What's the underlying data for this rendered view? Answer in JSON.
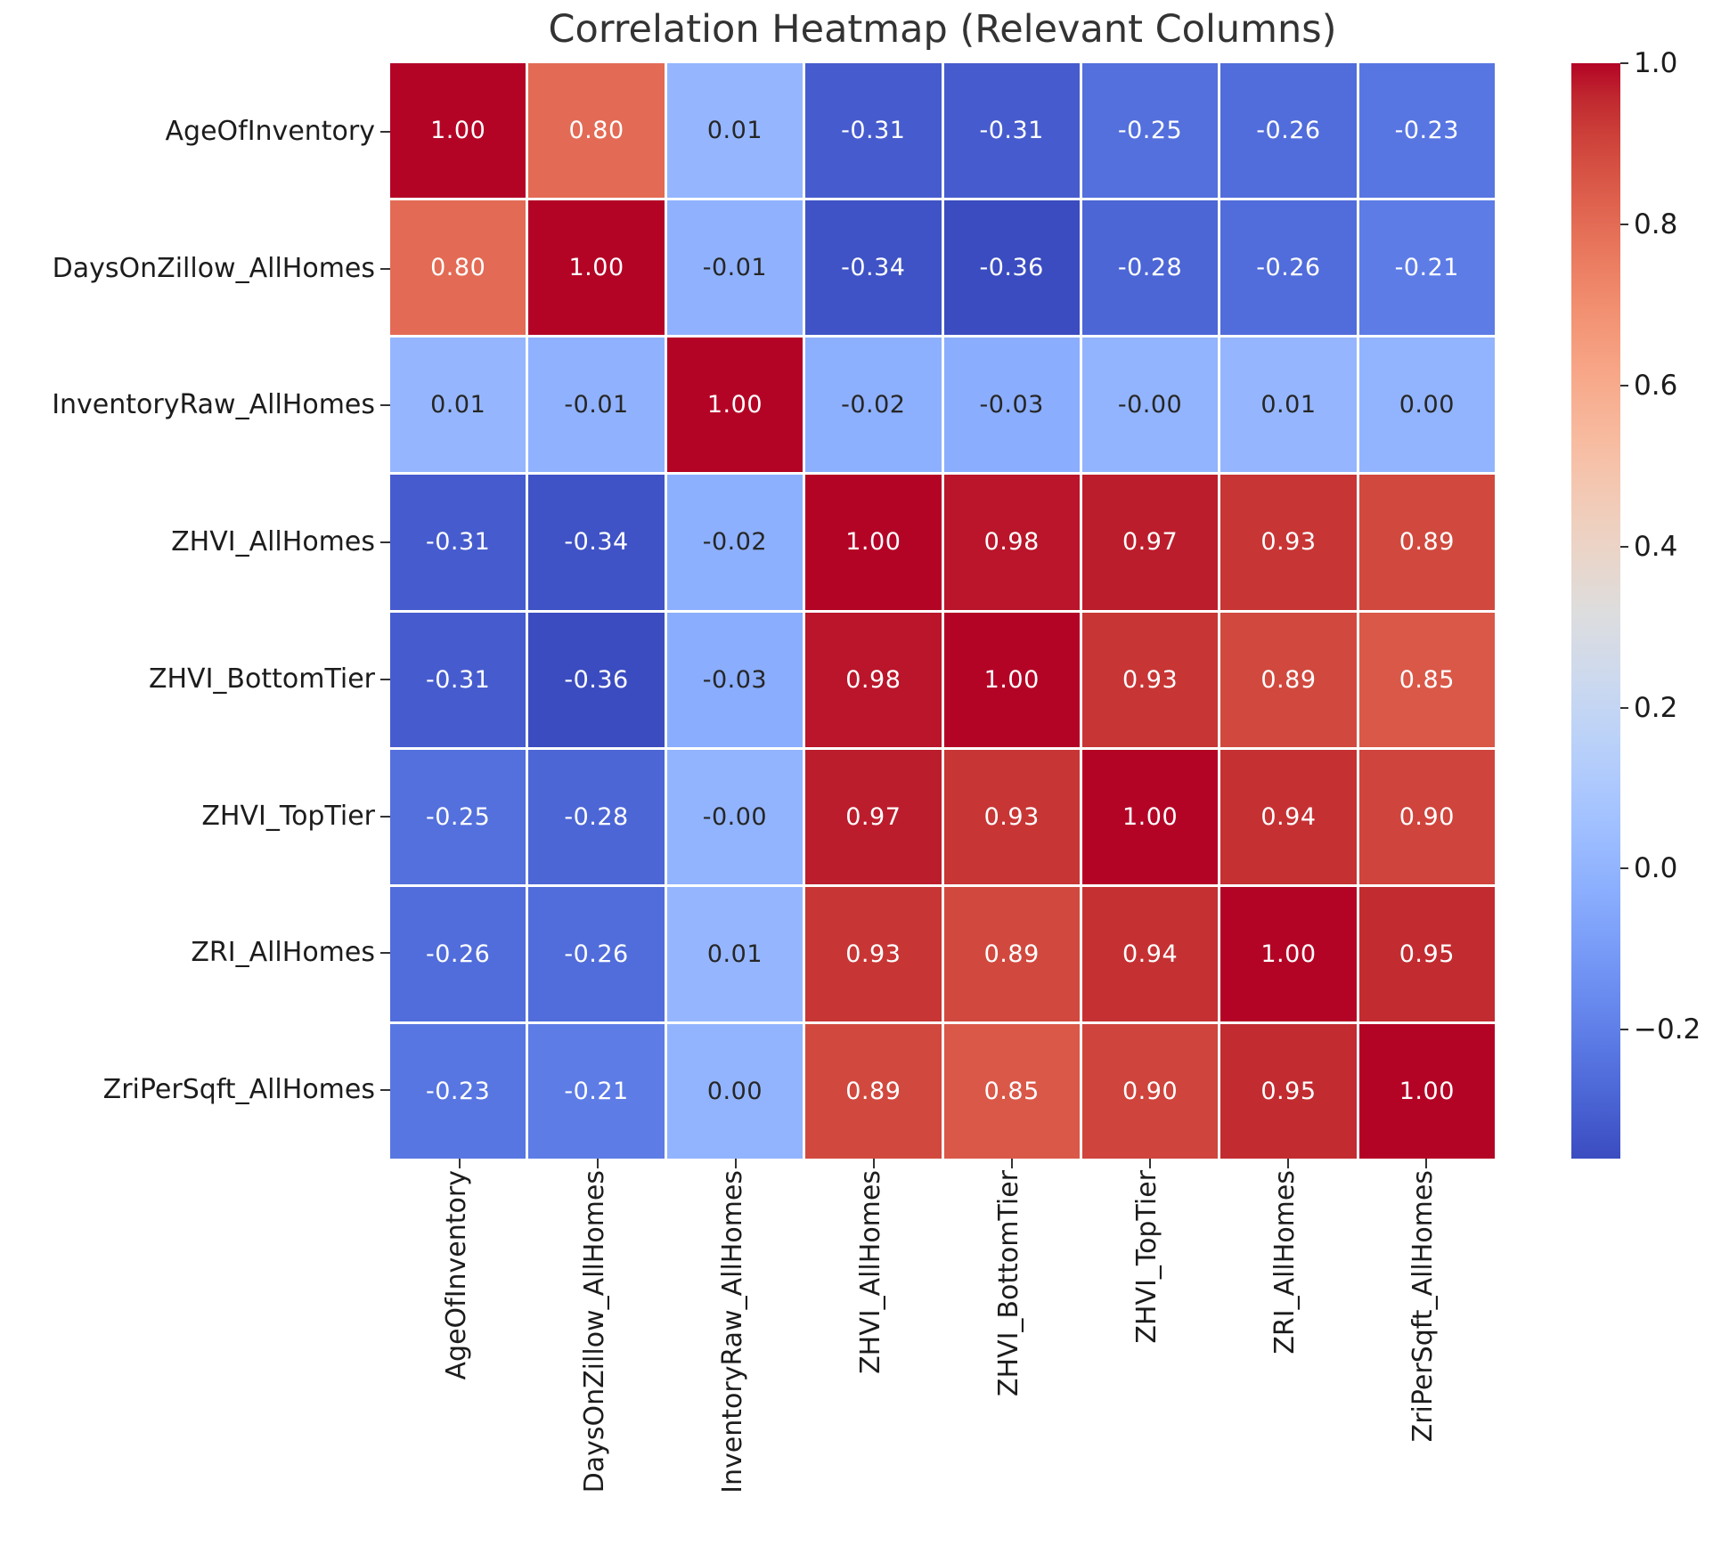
{
  "title": "Correlation Heatmap (Relevant Columns)",
  "chart_data": {
    "type": "heatmap",
    "title": "Correlation Heatmap (Relevant Columns)",
    "colormap": "coolwarm",
    "vmin": -0.36,
    "vmax": 1.0,
    "grid_line_color": "#ffffff",
    "annotation_text_colors": {
      "on_dark": "#ffffff",
      "on_light": "#262626"
    },
    "categories": [
      "AgeOfInventory",
      "DaysOnZillow_AllHomes",
      "InventoryRaw_AllHomes",
      "ZHVI_AllHomes",
      "ZHVI_BottomTier",
      "ZHVI_TopTier",
      "ZRI_AllHomes",
      "ZriPerSqft_AllHomes"
    ],
    "matrix": [
      [
        "1.00",
        "0.80",
        "0.01",
        "-0.31",
        "-0.31",
        "-0.25",
        "-0.26",
        "-0.23"
      ],
      [
        "0.80",
        "1.00",
        "-0.01",
        "-0.34",
        "-0.36",
        "-0.28",
        "-0.26",
        "-0.21"
      ],
      [
        "0.01",
        "-0.01",
        "1.00",
        "-0.02",
        "-0.03",
        "-0.00",
        "0.01",
        "0.00"
      ],
      [
        "-0.31",
        "-0.34",
        "-0.02",
        "1.00",
        "0.98",
        "0.97",
        "0.93",
        "0.89"
      ],
      [
        "-0.31",
        "-0.36",
        "-0.03",
        "0.98",
        "1.00",
        "0.93",
        "0.89",
        "0.85"
      ],
      [
        "-0.25",
        "-0.28",
        "-0.00",
        "0.97",
        "0.93",
        "1.00",
        "0.94",
        "0.90"
      ],
      [
        "-0.26",
        "-0.26",
        "0.01",
        "0.93",
        "0.89",
        "0.94",
        "1.00",
        "0.95"
      ],
      [
        "-0.23",
        "-0.21",
        "0.00",
        "0.89",
        "0.85",
        "0.90",
        "0.95",
        "1.00"
      ]
    ],
    "colorbar": {
      "position": "right",
      "tick_labels": [
        "1.0",
        "0.8",
        "0.6",
        "0.4",
        "0.2",
        "0.0",
        "−0.2"
      ],
      "tick_values": [
        1.0,
        0.8,
        0.6,
        0.4,
        0.2,
        0.0,
        -0.2
      ]
    }
  }
}
